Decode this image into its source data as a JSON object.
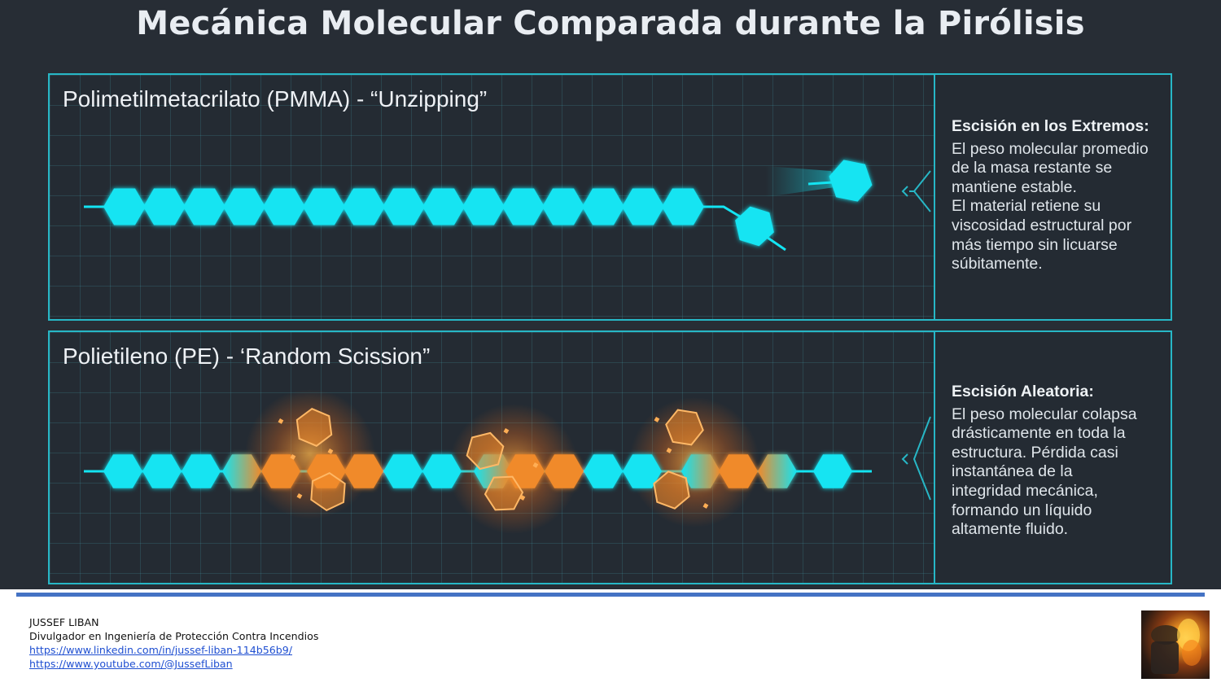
{
  "title": "Mecánica Molecular Comparada durante la Pirólisis",
  "pmma": {
    "title": "Polimetilmetacrilato (PMMA) - “Unzipping”",
    "heading": "Escisión en los Extremos:",
    "lines": [
      "El peso molecular promedio",
      "de la masa restante se",
      "mantiene estable.",
      "El material retiene su",
      "viscosidad estructural por",
      "más tiempo sin licuarse",
      "súbitamente."
    ]
  },
  "pe": {
    "title": "Polietileno (PE) - ‘Random Scission”",
    "heading": "Escisión Aleatoria:",
    "lines": [
      "El peso molecular colapsa",
      "drásticamente en toda la",
      "estructura. Pérdida casi",
      "instantánea de la",
      "integridad mecánica,",
      "formando un líquido",
      "altamente fluido."
    ]
  },
  "footer": {
    "name": "JUSSEF LIBAN",
    "role": "Divulgador en Ingeniería de Protección Contra Incendios",
    "linkedin": "https://www.linkedin.com/in/jussef-liban-114b56b9/",
    "youtube": "https://www.youtube.com/@JussefLiban"
  },
  "colors": {
    "background": "#272d35",
    "accent_cyan": "#13e4f2",
    "panel_border": "#27b7c6",
    "scission_orange": "#f08a2a",
    "footer_bar": "#4472c4"
  },
  "icons": {
    "pmma_pointer": "chevron-left-icon",
    "pe_pointer": "chevron-left-icon",
    "author_photo": "firefighter-photo"
  }
}
